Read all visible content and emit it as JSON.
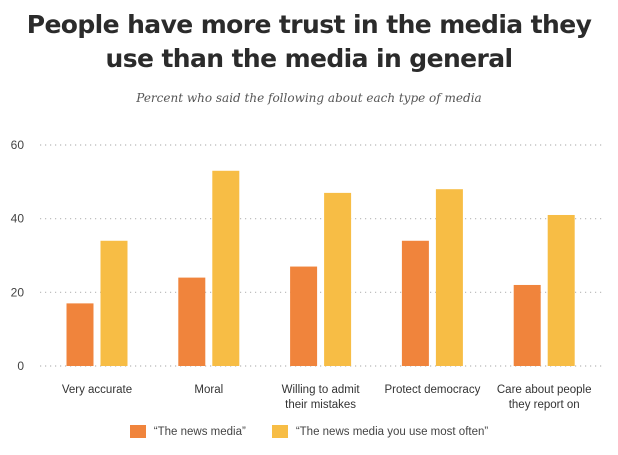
{
  "chart_data": {
    "type": "bar",
    "title": "People have more trust in the media they use than the media in general",
    "subtitle": "Percent who said the following about each type of media",
    "xlabel": "",
    "ylabel": "",
    "ylim": [
      0,
      60
    ],
    "yticks": [
      0,
      20,
      40,
      60
    ],
    "grid": true,
    "legend_position": "bottom",
    "categories": [
      [
        "Very accurate"
      ],
      [
        "Moral"
      ],
      [
        "Willing to admit",
        "their mistakes"
      ],
      [
        "Protect democracy"
      ],
      [
        "Care about people",
        "they report on"
      ]
    ],
    "series": [
      {
        "name": "“The news media”",
        "color": "#f0843c",
        "values": [
          17,
          24,
          27,
          34,
          22
        ]
      },
      {
        "name": "“The news media you use most often”",
        "color": "#f7bd45",
        "values": [
          34,
          53,
          47,
          48,
          41
        ]
      }
    ]
  }
}
